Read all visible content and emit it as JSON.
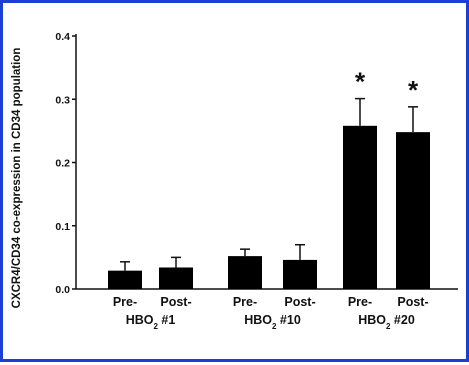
{
  "chart_data": {
    "type": "bar",
    "title": "",
    "xlabel": "",
    "ylabel": "CXCR4/CD34 co-expression in CD34 population",
    "ylim": [
      0,
      0.4
    ],
    "yticks": [
      "0.0",
      "0.1",
      "0.2",
      "0.3",
      "0.4"
    ],
    "y_tick_values": [
      0,
      0.1,
      0.2,
      0.3,
      0.4
    ],
    "categories": [
      "Pre-",
      "Post-",
      "Pre-",
      "Post-",
      "Pre-",
      "Post-"
    ],
    "values": [
      0.029,
      0.034,
      0.052,
      0.046,
      0.258,
      0.248
    ],
    "errors": [
      0.014,
      0.016,
      0.011,
      0.024,
      0.043,
      0.04
    ],
    "significance": [
      "",
      "",
      "",
      "",
      "*",
      "*"
    ],
    "groups": [
      {
        "base": "HBO",
        "sub": "2",
        "suffix": " #1"
      },
      {
        "base": "HBO",
        "sub": "2",
        "suffix": " #10"
      },
      {
        "base": "HBO",
        "sub": "2",
        "suffix": " #20"
      }
    ],
    "bar_color": "#000000",
    "border_color": "#1a3fd6",
    "grid": false,
    "legend": "none"
  }
}
